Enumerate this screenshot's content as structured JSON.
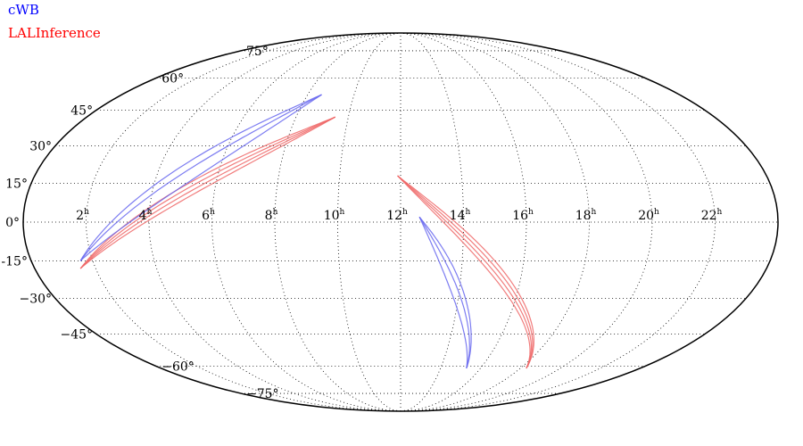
{
  "legend": [
    {
      "label": "cWB",
      "color": "#0000ff"
    },
    {
      "label": "LALInference",
      "color": "#ff0000"
    }
  ],
  "projection": "mollweide",
  "grid": {
    "style": "dotted",
    "ra_labels": [
      "22h",
      "20h",
      "18h",
      "16h",
      "14h",
      "12h",
      "10h",
      "8h",
      "6h",
      "4h",
      "2h"
    ],
    "dec_labels": [
      "75°",
      "60°",
      "45°",
      "30°",
      "15°",
      "0°",
      "-15°",
      "−30°",
      "−45°",
      "−60°",
      "−75°"
    ]
  },
  "colors": {
    "cwb": "#6666ee",
    "lal": "#ee6666",
    "frame": "#000000"
  },
  "sky_regions": [
    {
      "name": "LALInference",
      "color": "#ee6666",
      "arcs": [
        {
          "ra_from": 9.5,
          "ra_to": 1.5,
          "dec_from": 42,
          "dec_to": -18,
          "widths": [
            0,
            2,
            4,
            6
          ]
        },
        {
          "ra_from": 11.9,
          "ra_to": 18.3,
          "dec_from": 18,
          "dec_to": -61,
          "widths": [
            0,
            2,
            4,
            6
          ]
        }
      ]
    },
    {
      "name": "cWB",
      "color": "#6666ee",
      "arcs": [
        {
          "ra_from": 8.6,
          "ra_to": 1.6,
          "dec_from": 52,
          "dec_to": -15,
          "widths": [
            -3,
            3,
            7
          ]
        },
        {
          "ra_from": 12.6,
          "ra_to": 15.3,
          "dec_from": 2,
          "dec_to": -61,
          "widths": [
            -3,
            3,
            7
          ]
        }
      ]
    }
  ]
}
